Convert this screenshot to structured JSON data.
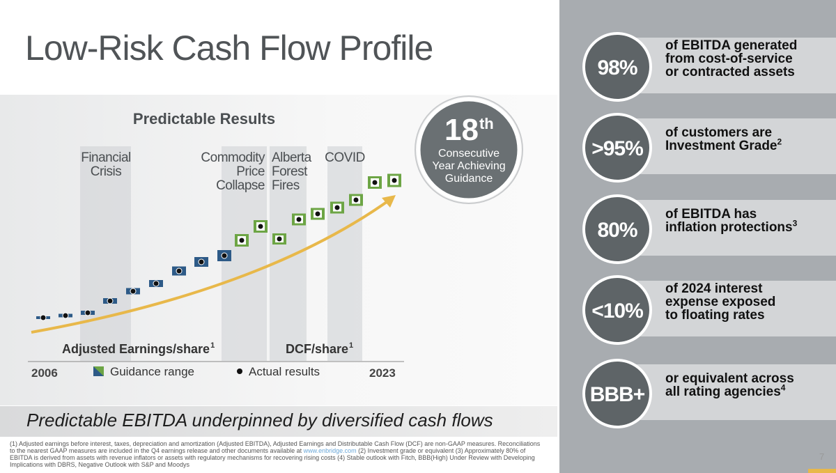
{
  "title": "Low-Risk Cash Flow Profile",
  "chart": {
    "title": "Predictable Results",
    "periods": [
      "Financial\nCrisis",
      "Commodity\nPrice\nCollapse",
      "Alberta\nForest\nFires",
      "COVID"
    ],
    "left_label": "Adjusted Earnings/share",
    "left_label_note": "1",
    "right_label": "DCF/share",
    "right_label_note": "1",
    "start": "2006",
    "end": "2023",
    "legend": [
      "Guidance range",
      "Actual results"
    ]
  },
  "badge": {
    "number": "18",
    "suffix": "th",
    "text": "Consecutive\nYear Achieving\nGuidance"
  },
  "tagline": "Predictable EBITDA underpinned by diversified cash flows",
  "footnotes": {
    "before": "(1) Adjusted earnings before interest, taxes, depreciation and amortization (Adjusted EBITDA), Adjusted Earnings and Distributable Cash Flow (DCF) are non-GAAP measures. Reconciliations to the nearest GAAP measures are included in the Q4 earnings release and other documents available at ",
    "link": "www.enbridge.com",
    "after": " (2) Investment grade or equivalent (3) Approximately 80% of EBITDA is derived from assets with revenue inflators or assets with regulatory mechanisms for recovering rising costs (4) Stable outlook with Fitch, BBB(High) Under Review with Developing Implications with DBRS, Negative Outlook with S&P and Moodys"
  },
  "page_number": "7",
  "stats": [
    {
      "value": "98%",
      "text": "of EBITDA generated\nfrom cost-of-service\nor contracted assets"
    },
    {
      "value": ">95%",
      "text": "of customers are\nInvestment Grade",
      "note": "2"
    },
    {
      "value": "80%",
      "text": "of EBITDA has\ninflation protections",
      "note": "3"
    },
    {
      "value": "<10%",
      "text": "of 2024 interest\nexpense exposed\nto floating rates"
    },
    {
      "value": "BBB+",
      "text": "or equivalent across\nall rating agencies",
      "note": "4"
    }
  ]
}
